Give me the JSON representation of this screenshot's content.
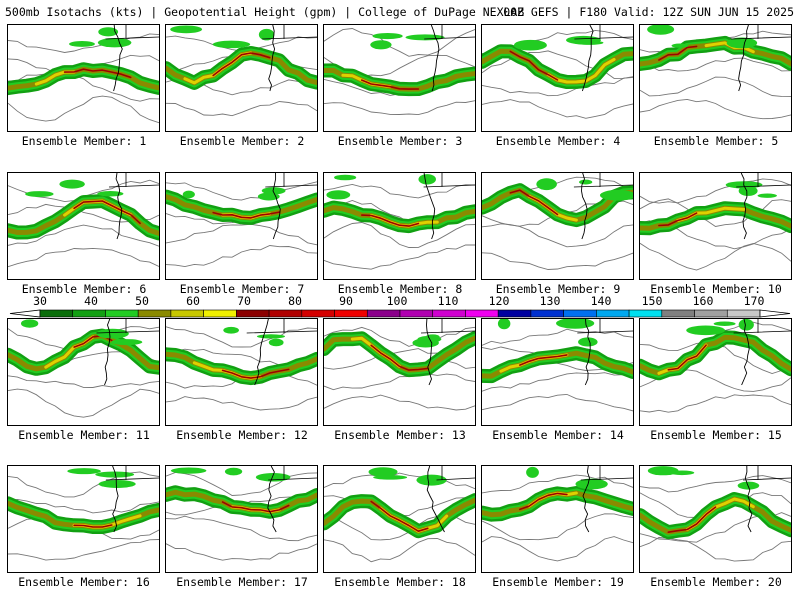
{
  "header": {
    "left": "500mb Isotachs (kts) | Geopotential Height (gpm) | College of DuPage NEXLAB",
    "right": "00Z GEFS | F180 Valid: 12Z SUN JUN 15 2025"
  },
  "panels": [
    {
      "label": "Ensemble Member: 1"
    },
    {
      "label": "Ensemble Member: 2"
    },
    {
      "label": "Ensemble Member: 3"
    },
    {
      "label": "Ensemble Member: 4"
    },
    {
      "label": "Ensemble Member: 5"
    },
    {
      "label": "Ensemble Member: 6"
    },
    {
      "label": "Ensemble Member: 7"
    },
    {
      "label": "Ensemble Member: 8"
    },
    {
      "label": "Ensemble Member: 9"
    },
    {
      "label": "Ensemble Member: 10"
    },
    {
      "label": "Ensemble Member: 11"
    },
    {
      "label": "Ensemble Member: 12"
    },
    {
      "label": "Ensemble Member: 13"
    },
    {
      "label": "Ensemble Member: 14"
    },
    {
      "label": "Ensemble Member: 15"
    },
    {
      "label": "Ensemble Member: 16"
    },
    {
      "label": "Ensemble Member: 17"
    },
    {
      "label": "Ensemble Member: 18"
    },
    {
      "label": "Ensemble Member: 19"
    },
    {
      "label": "Ensemble Member: 20"
    }
  ],
  "colorbar": {
    "labels": [
      "30",
      "40",
      "50",
      "60",
      "70",
      "80",
      "90",
      "100",
      "110",
      "120",
      "130",
      "140",
      "150",
      "160",
      "170"
    ],
    "colors": [
      "#0a6e0a",
      "#12a012",
      "#22cc22",
      "#8a8a00",
      "#c8c800",
      "#f0f000",
      "#8b0000",
      "#b00000",
      "#d40000",
      "#f00000",
      "#8b008b",
      "#b000b0",
      "#d000d0",
      "#f000f0",
      "#0000a0",
      "#0030d0",
      "#0070f0",
      "#00a8f0",
      "#00e0f0",
      "#808080",
      "#a0a0a0",
      "#c8c8c8"
    ]
  }
}
